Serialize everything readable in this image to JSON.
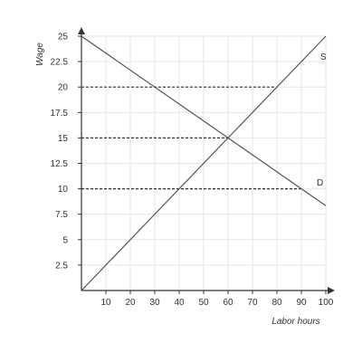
{
  "chart_data": {
    "type": "line",
    "xlabel": "Labor hours",
    "ylabel": "Wage",
    "xlim": [
      0,
      100
    ],
    "ylim": [
      0,
      25
    ],
    "xticks": [
      10,
      20,
      30,
      40,
      50,
      60,
      70,
      80,
      90,
      100
    ],
    "yticks": [
      2.5,
      5,
      7.5,
      10,
      12.5,
      15,
      17.5,
      20,
      22.5,
      25
    ],
    "xtick_labels": [
      "10",
      "20",
      "30",
      "40",
      "50",
      "60",
      "70",
      "80",
      "90",
      "100"
    ],
    "ytick_labels": [
      "2.5",
      "5",
      "7.5",
      "10",
      "12.5",
      "15",
      "17.5",
      "20",
      "22.5",
      "25"
    ],
    "grid": true,
    "series": [
      {
        "name": "S",
        "x": [
          0,
          100
        ],
        "y": [
          0,
          25
        ],
        "color": "#555555"
      },
      {
        "name": "D",
        "x": [
          0,
          100
        ],
        "y": [
          25,
          8.333
        ],
        "color": "#555555"
      }
    ],
    "reference_lines": [
      {
        "y": 20,
        "x_from": 0,
        "x_to": 80
      },
      {
        "y": 15,
        "x_from": 0,
        "x_to": 60
      },
      {
        "y": 10,
        "x_from": 0,
        "x_to": 90
      }
    ],
    "colors": {
      "grid": "#e6e6e6",
      "axis": "#333333",
      "curve": "#555555",
      "reference": "#333333"
    }
  }
}
